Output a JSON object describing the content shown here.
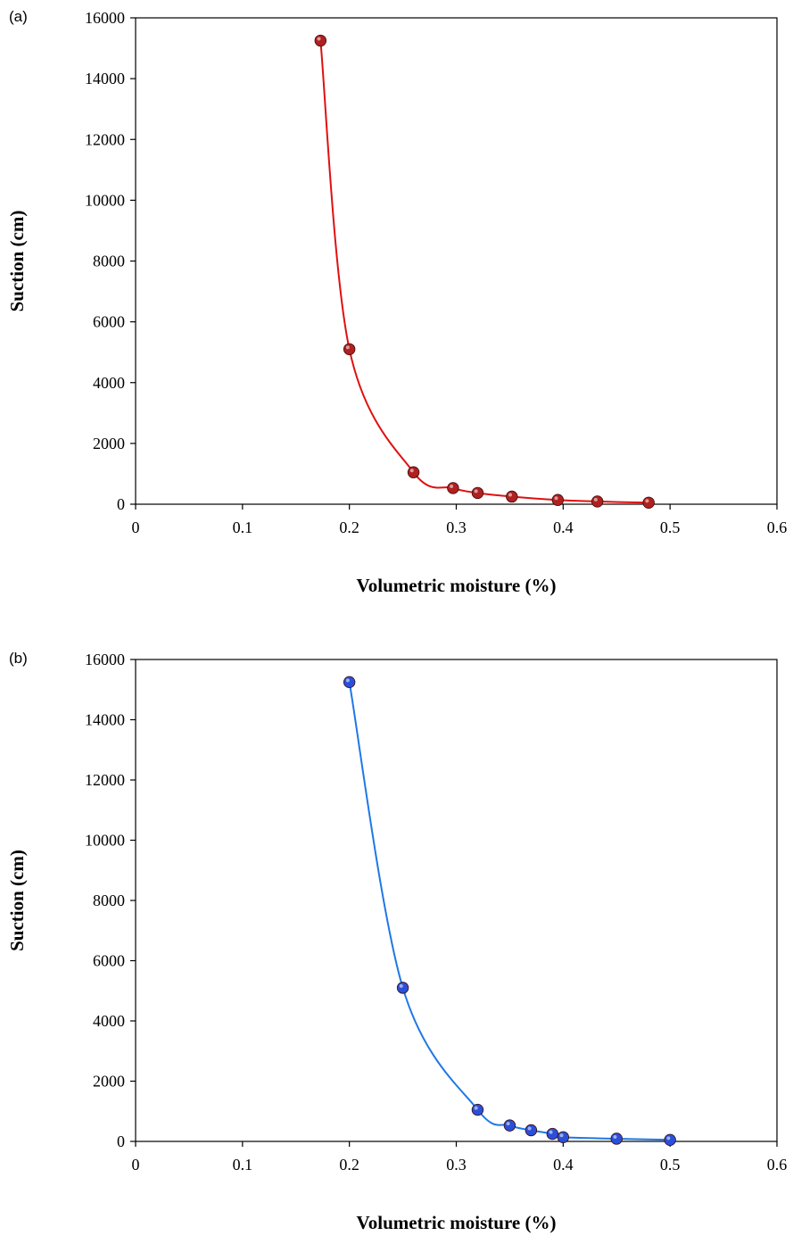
{
  "chart_data": [
    {
      "type": "scatter",
      "panel_label": "(a)",
      "xlabel": "Volumetric moisture (%)",
      "ylabel": "Suction (cm)",
      "xlim": [
        0,
        0.6
      ],
      "ylim": [
        0,
        16000
      ],
      "x_ticks": [
        "0",
        "0.1",
        "0.2",
        "0.3",
        "0.4",
        "0.5",
        "0.6"
      ],
      "y_ticks": [
        "0",
        "2000",
        "4000",
        "6000",
        "8000",
        "10000",
        "12000",
        "14000",
        "16000"
      ],
      "grid": false,
      "smooth_line": true,
      "line_color": "#e01010",
      "marker_color": "#b02020",
      "series": [
        {
          "x": [
            0.173,
            0.2,
            0.26,
            0.297,
            0.32,
            0.352,
            0.395,
            0.432,
            0.48
          ],
          "y": [
            15250,
            5100,
            1050,
            530,
            370,
            250,
            140,
            90,
            50
          ]
        }
      ]
    },
    {
      "type": "scatter",
      "panel_label": "(b)",
      "xlabel": "Volumetric moisture (%)",
      "ylabel": "Suction (cm)",
      "xlim": [
        0,
        0.6
      ],
      "ylim": [
        0,
        16000
      ],
      "x_ticks": [
        "0",
        "0.1",
        "0.2",
        "0.3",
        "0.4",
        "0.5",
        "0.6"
      ],
      "y_ticks": [
        "0",
        "2000",
        "4000",
        "6000",
        "8000",
        "10000",
        "12000",
        "14000",
        "16000"
      ],
      "grid": false,
      "smooth_line": true,
      "line_color": "#1e78e6",
      "marker_color": "#2a4fd8",
      "series": [
        {
          "x": [
            0.2,
            0.25,
            0.32,
            0.35,
            0.37,
            0.39,
            0.4,
            0.45,
            0.5
          ],
          "y": [
            15250,
            5100,
            1050,
            530,
            370,
            250,
            140,
            90,
            50
          ]
        }
      ]
    }
  ]
}
